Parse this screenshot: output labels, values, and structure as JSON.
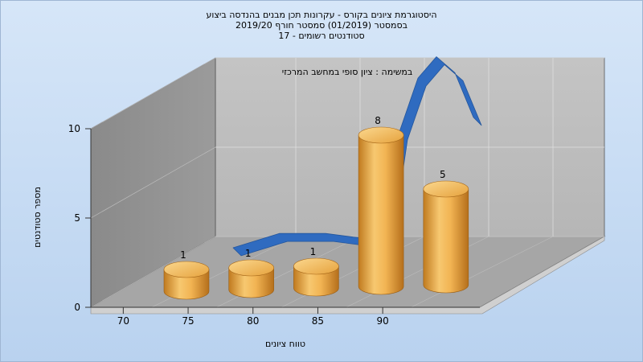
{
  "chart_data": {
    "type": "bar",
    "title_lines": [
      "היסטוגרמת ציונים בקורס - עקרונות תכן מבנים בהנדסה ביצוע",
      "בסמסטר  (01/2019)  סמסטר חורף 2019/20",
      "סטודנטים רשומים - 17"
    ],
    "subtitle": "במשימה : ציון סופי במחשב המרכזי",
    "xlabel": "טווח ציונים",
    "ylabel": "מספר סטודנטים",
    "categories": [
      "70",
      "75",
      "80",
      "85",
      "90"
    ],
    "bar_labels": [
      "1",
      "1",
      "1",
      "8",
      "5"
    ],
    "values": [
      1,
      1,
      1,
      8,
      5
    ],
    "y_ticks": [
      "0",
      "5",
      "10"
    ],
    "ylim": [
      0,
      10
    ],
    "curve": [
      [
        70,
        0.0
      ],
      [
        75,
        0.8
      ],
      [
        80,
        0.8
      ],
      [
        83,
        0.6
      ],
      [
        85,
        0.5
      ],
      [
        87,
        3.0
      ],
      [
        88,
        6.5
      ],
      [
        90,
        9.5
      ],
      [
        92,
        10.7
      ],
      [
        94,
        9.8
      ],
      [
        96,
        7.3
      ]
    ],
    "grid": true,
    "colors": {
      "bar": "#e8a43c",
      "bar_top": "#f6c56a",
      "curve": "#2f6bc0",
      "back_wall": "#c6c6c6",
      "side_wall": "#8c8c8c",
      "floor": "#a5a5a5"
    }
  }
}
